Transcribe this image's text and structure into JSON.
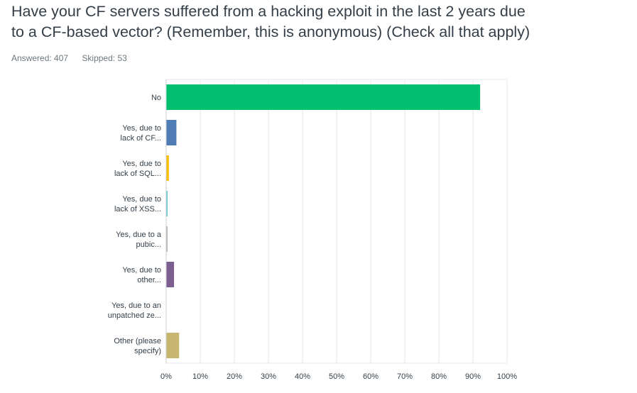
{
  "question": {
    "line1": "Have your CF servers suffered from a hacking exploit in the last 2 years due",
    "line2": "to a CF-based vector? (Remember, this is anonymous) (Check all that apply)"
  },
  "meta": {
    "answered": "Answered: 407",
    "skipped": "Skipped: 53"
  },
  "chart_data": {
    "type": "bar",
    "orientation": "horizontal",
    "categories": [
      [
        "No"
      ],
      [
        "Yes, due to",
        "lack of CF..."
      ],
      [
        "Yes, due to",
        "lack of SQL..."
      ],
      [
        "Yes, due to",
        "lack of XSS..."
      ],
      [
        "Yes, due to a",
        "pubic..."
      ],
      [
        "Yes, due to",
        "other..."
      ],
      [
        "Yes, due to an",
        "unpatched ze..."
      ],
      [
        "Other (please",
        "specify)"
      ]
    ],
    "values": [
      92,
      2.9,
      0.7,
      0.25,
      0.25,
      2.2,
      0,
      3.7
    ],
    "colors": [
      "#00bf6f",
      "#507cb6",
      "#f9be00",
      "#6bc8cd",
      "#b8b8b8",
      "#7d5e90",
      "#d25f90",
      "#c8b670"
    ],
    "x_ticks": [
      "0%",
      "10%",
      "20%",
      "30%",
      "40%",
      "50%",
      "60%",
      "70%",
      "80%",
      "90%",
      "100%"
    ],
    "xlim": [
      0,
      100
    ],
    "unit": "%",
    "grid": true
  }
}
